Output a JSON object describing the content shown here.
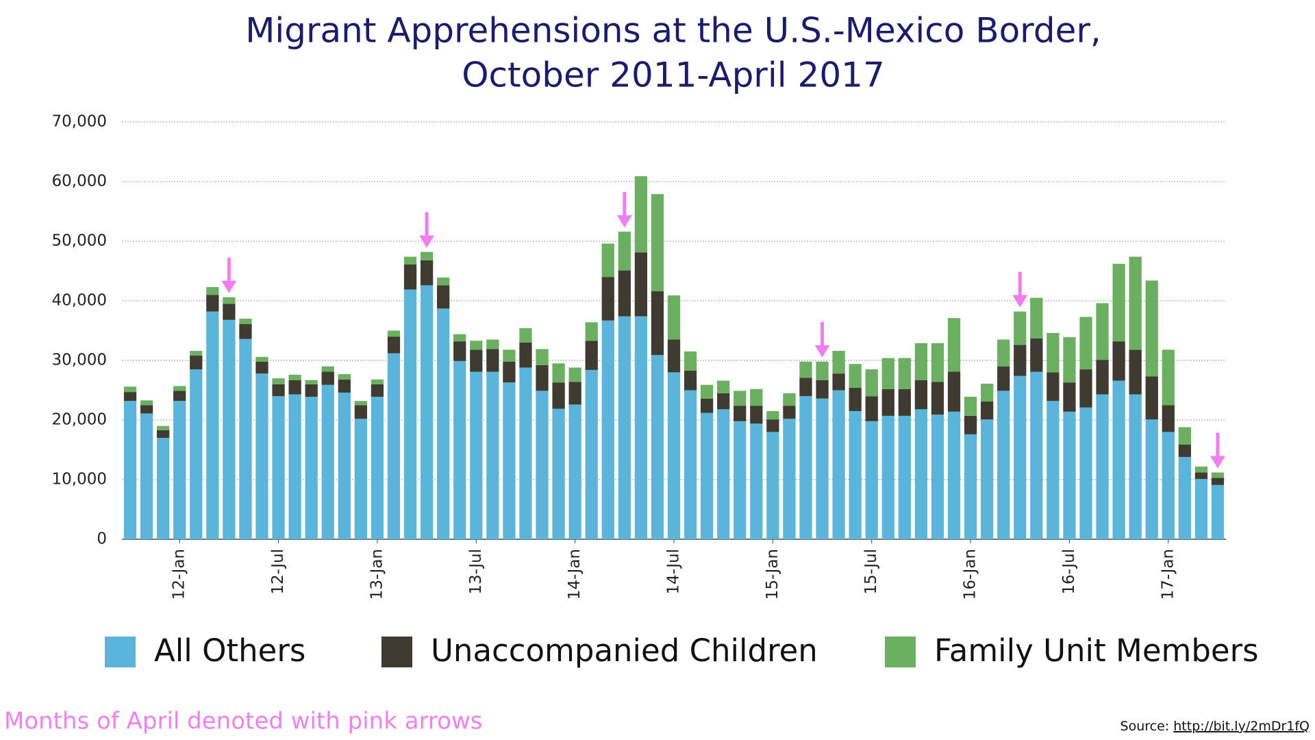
{
  "chart_data": {
    "type": "stacked_bar",
    "title": [
      "Migrant Apprehensions at the U.S.-Mexico Border,",
      "October 2011-April 2017"
    ],
    "categories": [
      null,
      null,
      null,
      "12-Jan",
      null,
      null,
      null,
      null,
      null,
      "12-Jul",
      null,
      null,
      null,
      null,
      null,
      "13-Jan",
      null,
      null,
      null,
      null,
      null,
      "13-Jul",
      null,
      null,
      null,
      null,
      null,
      "14-Jan",
      null,
      null,
      null,
      null,
      null,
      "14-Jul",
      null,
      null,
      null,
      null,
      null,
      "15-Jan",
      null,
      null,
      null,
      null,
      null,
      "15-Jul",
      null,
      null,
      null,
      null,
      null,
      "16-Jan",
      null,
      null,
      null,
      null,
      null,
      "16-Jul",
      null,
      null,
      null,
      null,
      null,
      "17-Jan",
      null,
      null,
      null
    ],
    "series": [
      {
        "name": "All Others",
        "color": "#5ab4dc",
        "values": [
          23200,
          21100,
          17000,
          23200,
          28500,
          38200,
          36800,
          33600,
          27800,
          24000,
          24300,
          23900,
          25900,
          24600,
          20200,
          23900,
          31200,
          41900,
          42600,
          38700,
          29900,
          28100,
          28100,
          26300,
          28800,
          24900,
          21900,
          22600,
          28400,
          36700,
          37400,
          37400,
          30900,
          28000,
          25000,
          21200,
          21800,
          19800,
          19400,
          18000,
          20200,
          24000,
          23600,
          25000,
          21500,
          19800,
          20700,
          20700,
          21800,
          20900,
          21400,
          17600,
          20100,
          24900,
          27400,
          28100,
          23200,
          21400,
          22100,
          24300,
          26600,
          24300,
          20100,
          18000,
          13800,
          10100,
          9100
        ]
      },
      {
        "name": "Unaccompanied Children",
        "color": "#403b30",
        "values": [
          1500,
          1400,
          1300,
          1700,
          2300,
          2800,
          2700,
          2500,
          2000,
          2000,
          2400,
          2100,
          2200,
          2200,
          2300,
          2100,
          2800,
          4200,
          4200,
          3900,
          3300,
          3700,
          3800,
          3500,
          4200,
          4300,
          4400,
          3800,
          4900,
          7300,
          7700,
          10700,
          10700,
          5500,
          3300,
          2400,
          2700,
          2600,
          3000,
          2100,
          2200,
          3100,
          3100,
          2800,
          3900,
          4200,
          4500,
          4500,
          4900,
          5500,
          6700,
          3100,
          3000,
          4100,
          5200,
          5600,
          4800,
          4900,
          6400,
          5800,
          6600,
          7500,
          7200,
          4500,
          2100,
          1100,
          1200
        ]
      },
      {
        "name": "Family Unit Members",
        "color": "#6ab060",
        "values": [
          900,
          800,
          700,
          800,
          800,
          1300,
          1100,
          900,
          800,
          1000,
          900,
          700,
          900,
          900,
          700,
          800,
          1000,
          1300,
          1400,
          1300,
          1200,
          1500,
          1600,
          2000,
          2400,
          2700,
          3200,
          2400,
          3100,
          5600,
          6500,
          12800,
          16300,
          7400,
          3200,
          2300,
          2100,
          2500,
          2800,
          1400,
          2100,
          2700,
          3100,
          3800,
          4000,
          4500,
          5200,
          5200,
          6200,
          6500,
          9000,
          3200,
          3000,
          4500,
          5600,
          6800,
          6600,
          7600,
          8800,
          9500,
          13000,
          15600,
          16100,
          9300,
          2900,
          1000,
          900
        ]
      }
    ],
    "ylim": [
      0,
      70000
    ],
    "yticks": [
      0,
      {
        "value": 10000,
        "label": "10,000"
      },
      {
        "value": 20000,
        "label": "20,000"
      },
      {
        "value": 30000,
        "label": "30,000"
      },
      {
        "value": 40000,
        "label": "40,000"
      },
      {
        "value": 50000,
        "label": "50,000"
      },
      {
        "value": 60000,
        "label": "60,000"
      },
      {
        "value": 70000,
        "label": "70,000"
      }
    ],
    "grid": true,
    "annotation": "Months of April denoted with pink arrows",
    "annotation_color": "#f080f0",
    "source_label": "Source:",
    "source_url": "http://bit.ly/2mDr1fQ"
  }
}
